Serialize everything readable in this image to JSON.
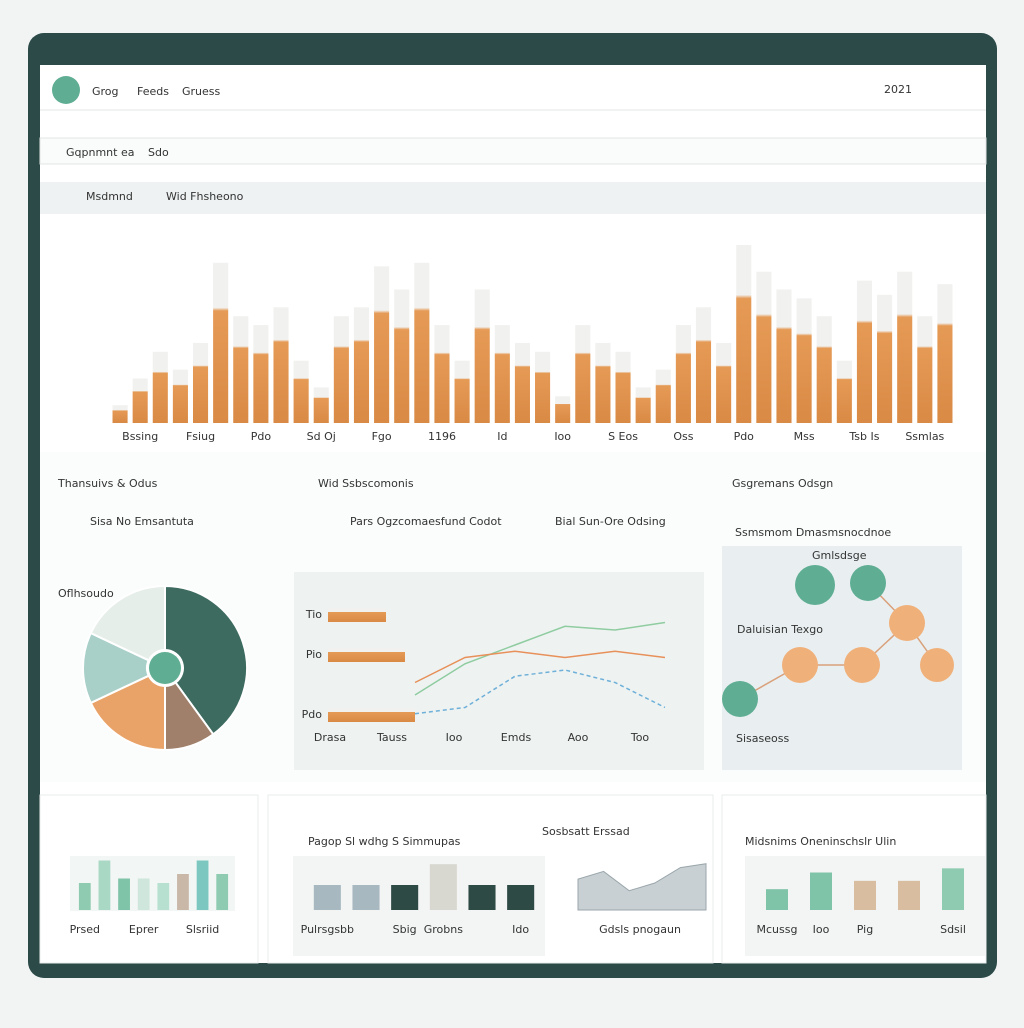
{
  "header": {
    "brand": "Grog",
    "nav": [
      "Feeds",
      "Gruess"
    ],
    "year": "2021"
  },
  "toolbar": {
    "left": "Gqpnmnt ea",
    "right": "Sdo"
  },
  "search": {
    "left": "Msdmnd",
    "right": "Wid Fhsheono"
  },
  "network": {
    "title": "Gsgremans Odsgn",
    "subtitle": "Ssmsmom Dmasmsnocdnoe",
    "nodes": [
      "Gmlsdsge",
      "Daluisian Texgo",
      "Sisaseoss"
    ]
  },
  "chart_data": [
    {
      "type": "bar",
      "color": "#e59a55",
      "ylim": [
        0,
        100
      ],
      "categories": [
        null,
        "Bssing",
        null,
        null,
        "Fsiug",
        null,
        null,
        "Pdo",
        null,
        null,
        "Sd Oj",
        null,
        null,
        "Fgo",
        null,
        null,
        "1196",
        null,
        null,
        "Id",
        null,
        null,
        "Ioo",
        null,
        null,
        "S Eos",
        null,
        null,
        "Oss",
        null,
        null,
        "Pdo",
        null,
        null,
        "Mss",
        null,
        null,
        "Tsb Is",
        null,
        null,
        "Ssmlas",
        null
      ],
      "values": [
        10,
        25,
        40,
        30,
        45,
        90,
        60,
        55,
        65,
        35,
        20,
        60,
        65,
        88,
        75,
        90,
        55,
        35,
        75,
        55,
        45,
        40,
        15,
        55,
        45,
        40,
        20,
        30,
        55,
        65,
        45,
        100,
        85,
        75,
        70,
        60,
        35,
        80,
        72,
        85,
        60,
        78
      ]
    },
    {
      "type": "pie",
      "title": "Thansuivs & Odus",
      "legend": "Sisa No Emsantuta",
      "label": "Oflhsoudo",
      "values": [
        40,
        10,
        18,
        14,
        18
      ],
      "colors": [
        "#3d6b60",
        "#a0806a",
        "#e9a368",
        "#a8cfc8",
        "#e6eee9"
      ]
    },
    {
      "type": "hbar",
      "categories": [
        "Tio",
        "Pio",
        "Pdo"
      ],
      "values": [
        58,
        77,
        87
      ],
      "xlim": [
        0,
        100
      ],
      "color": "#e59a55"
    },
    {
      "type": "line",
      "title": "Wid Ssbscomonis",
      "legend": [
        "Pars Ogzcomaesfund Codot",
        "Bial Sun-Ore Odsing"
      ],
      "categories": [
        "Drasa",
        "Tauss",
        "Ioo",
        "Emds",
        "Aoo",
        "Too"
      ],
      "ylim": [
        0,
        100
      ],
      "series": [
        {
          "color": "#8fcca0",
          "values": [
            20,
            45,
            60,
            75,
            72,
            78
          ]
        },
        {
          "color": "#e8905a",
          "values": [
            30,
            50,
            55,
            50,
            55,
            50
          ]
        },
        {
          "color": "#6fb0d8",
          "values": [
            5,
            10,
            35,
            40,
            30,
            10
          ]
        }
      ]
    },
    {
      "type": "bar",
      "categories": [
        "Prsed",
        null,
        null,
        "Eprer",
        null,
        null,
        "Slsriid",
        null
      ],
      "values": [
        30,
        55,
        35,
        35,
        30,
        40,
        55,
        40
      ],
      "ylim": [
        0,
        60
      ],
      "colors": [
        "#8fcbb0",
        "#a9d8c4",
        "#7fc4a8",
        "#cfe6dc",
        "#b8e0d0",
        "#c9b8a8",
        "#7cc8c0",
        "#8fcbb0"
      ]
    },
    {
      "type": "bar",
      "title": "Pagop Sl wdhg S Simmupas",
      "categories": [
        "Pulrsgsbb",
        null,
        "Sbig",
        "Grobns",
        null,
        "Ido"
      ],
      "values": [
        30,
        30,
        30,
        55,
        30,
        30
      ],
      "ylim": [
        0,
        60
      ],
      "colors": [
        "#a8b8c0",
        "#a8b8c0",
        "#2d4a44",
        "#d8d8d0",
        "#2d4a44",
        "#2d4a44"
      ]
    },
    {
      "type": "area",
      "title": "Sosbsatt Erssad",
      "label": "Gdsls pnogaun",
      "values": [
        40,
        50,
        25,
        35,
        55,
        60
      ],
      "ylim": [
        0,
        70
      ],
      "color": "#c8d0d4"
    },
    {
      "type": "bar",
      "title": "Midsnims Oneninschslr Ulin",
      "categories": [
        "Mcussg",
        "Ioo",
        "Pig",
        null,
        "Sdsil"
      ],
      "values": [
        25,
        45,
        35,
        35,
        50
      ],
      "ylim": [
        0,
        60
      ],
      "colors": [
        "#7fc4a8",
        "#7fc4a8",
        "#d8bda0",
        "#d8bda0",
        "#8fcbb0"
      ]
    }
  ]
}
